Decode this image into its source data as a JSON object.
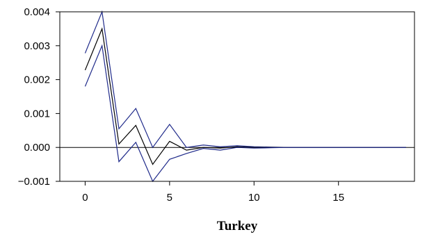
{
  "chart_data": {
    "type": "line",
    "title": "",
    "xlabel": "Turkey",
    "ylabel": "",
    "xlim": [
      -1.5,
      19.5
    ],
    "ylim": [
      -0.001,
      0.004
    ],
    "x_ticks": [
      0,
      5,
      10,
      15
    ],
    "x_tick_labels": [
      "0",
      "5",
      "10",
      "15"
    ],
    "y_ticks": [
      -0.001,
      0,
      0.001,
      0.002,
      0.003,
      0.004
    ],
    "y_tick_labels": [
      "−0.001",
      "0.000",
      "0.001",
      "0.002",
      "0.003",
      "0.004"
    ],
    "zero_line": true,
    "grid": false,
    "x": [
      0,
      1,
      2,
      3,
      4,
      5,
      6,
      7,
      8,
      9,
      10,
      11,
      12,
      13,
      14,
      15,
      16,
      17,
      18,
      19
    ],
    "series": [
      {
        "color": "#1f2a8a",
        "values": [
          0.00278,
          0.004,
          0.00055,
          0.00115,
          0.0,
          0.00068,
          0.0,
          7e-05,
          2e-05,
          5e-05,
          2e-05,
          1e-05,
          0.0,
          0.0,
          0.0,
          0.0,
          0.0,
          0.0,
          0.0,
          0.0
        ]
      },
      {
        "color": "#000000",
        "values": [
          0.00228,
          0.0035,
          0.0001,
          0.00065,
          -0.0005,
          0.00018,
          -8e-05,
          0.0,
          -2e-05,
          2e-05,
          0.0,
          0.0,
          0.0,
          0.0,
          0.0,
          0.0,
          0.0,
          0.0,
          0.0,
          0.0
        ]
      },
      {
        "color": "#1f2a8a",
        "values": [
          0.0018,
          0.003,
          -0.00042,
          0.00015,
          -0.001,
          -0.00035,
          -0.00018,
          -3e-05,
          -8e-05,
          0.0,
          -2e-05,
          -1e-05,
          0.0,
          0.0,
          0.0,
          0.0,
          0.0,
          0.0,
          0.0,
          0.0
        ]
      }
    ]
  }
}
